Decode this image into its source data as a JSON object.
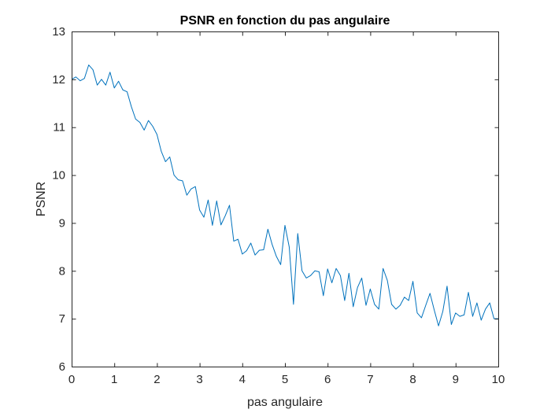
{
  "chart_data": {
    "type": "line",
    "title": "PSNR en fonction du pas angulaire",
    "xlabel": "pas angulaire",
    "ylabel": "PSNR",
    "xlim": [
      0,
      10
    ],
    "ylim": [
      6,
      13
    ],
    "xticks": [
      "0",
      "1",
      "2",
      "3",
      "4",
      "5",
      "6",
      "7",
      "8",
      "9",
      "10"
    ],
    "yticks": [
      "6",
      "7",
      "8",
      "9",
      "10",
      "11",
      "12",
      "13"
    ],
    "grid": false,
    "line_color": "#0072BD",
    "series": [
      {
        "x": [
          0.0,
          0.1,
          0.2,
          0.3,
          0.4,
          0.5,
          0.6,
          0.7,
          0.8,
          0.9,
          1.0,
          1.1,
          1.2,
          1.3,
          1.4,
          1.5,
          1.6,
          1.7,
          1.8,
          1.9,
          2.0,
          2.1,
          2.2,
          2.3,
          2.4,
          2.5,
          2.6,
          2.7,
          2.8,
          2.9,
          3.0,
          3.1,
          3.2,
          3.3,
          3.4,
          3.5,
          3.6,
          3.7,
          3.8,
          3.9,
          4.0,
          4.1,
          4.2,
          4.3,
          4.4,
          4.5,
          4.6,
          4.7,
          4.8,
          4.9,
          5.0,
          5.1,
          5.2,
          5.3,
          5.4,
          5.5,
          5.6,
          5.7,
          5.8,
          5.9,
          6.0,
          6.1,
          6.2,
          6.3,
          6.4,
          6.5,
          6.6,
          6.7,
          6.8,
          6.9,
          7.0,
          7.1,
          7.2,
          7.3,
          7.4,
          7.5,
          7.6,
          7.7,
          7.8,
          7.9,
          8.0,
          8.1,
          8.2,
          8.3,
          8.4,
          8.5,
          8.6,
          8.7,
          8.8,
          8.9,
          9.0,
          9.1,
          9.2,
          9.3,
          9.4,
          9.5,
          9.6,
          9.7,
          9.8,
          9.9,
          10.0
        ],
        "values": [
          12.0,
          12.05,
          11.97,
          12.02,
          12.3,
          12.2,
          11.88,
          12.0,
          11.88,
          12.15,
          11.82,
          11.96,
          11.78,
          11.74,
          11.43,
          11.17,
          11.1,
          10.94,
          11.14,
          11.02,
          10.85,
          10.5,
          10.28,
          10.38,
          10.0,
          9.9,
          9.88,
          9.58,
          9.71,
          9.76,
          9.27,
          9.12,
          9.48,
          8.95,
          9.46,
          8.96,
          9.15,
          9.37,
          8.62,
          8.66,
          8.35,
          8.42,
          8.58,
          8.33,
          8.43,
          8.44,
          8.87,
          8.55,
          8.3,
          8.13,
          8.95,
          8.5,
          7.3,
          8.78,
          8.0,
          7.85,
          7.9,
          8.0,
          7.98,
          7.48,
          8.04,
          7.75,
          8.05,
          7.9,
          7.38,
          7.95,
          7.25,
          7.65,
          7.85,
          7.28,
          7.62,
          7.3,
          7.2,
          8.05,
          7.8,
          7.3,
          7.2,
          7.28,
          7.45,
          7.38,
          7.78,
          7.12,
          7.02,
          7.28,
          7.53,
          7.18,
          6.85,
          7.15,
          7.68,
          6.88,
          7.12,
          7.05,
          7.08,
          7.55,
          7.05,
          7.33,
          6.97,
          7.2,
          7.33,
          7.0,
          7.0
        ]
      }
    ]
  }
}
